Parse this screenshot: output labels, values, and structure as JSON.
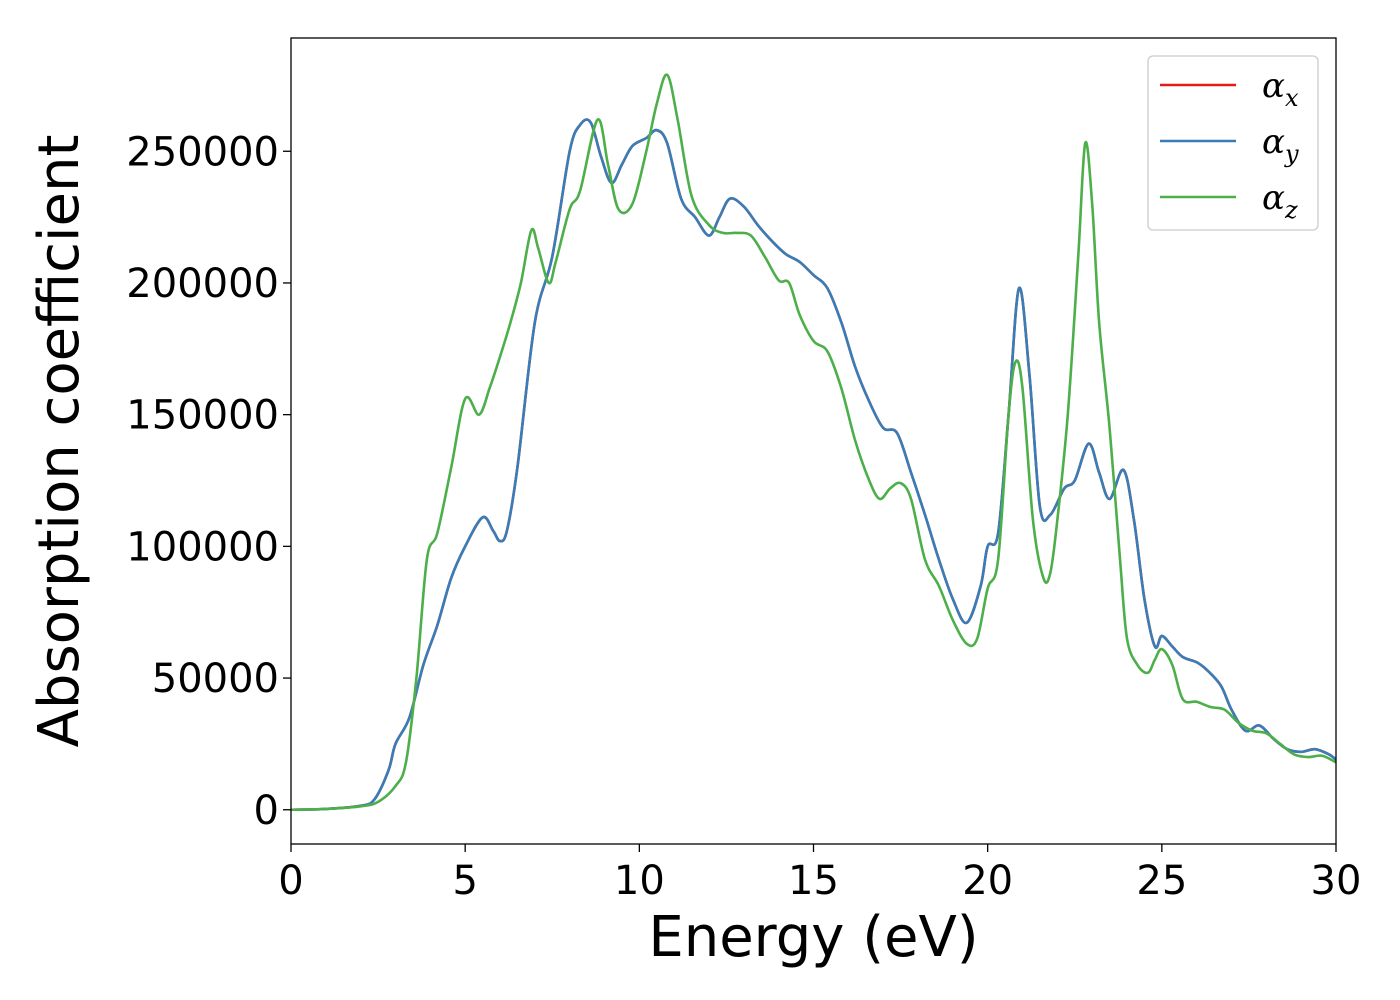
{
  "chart_data": {
    "type": "line",
    "title": "",
    "xlabel": "Energy (eV)",
    "ylabel": "Absorption coefficient",
    "xlim": [
      0,
      30
    ],
    "ylim": [
      -13000,
      293000
    ],
    "xticks": [
      0,
      5,
      10,
      15,
      20,
      25,
      30
    ],
    "xtick_labels": [
      "0",
      "5",
      "10",
      "15",
      "20",
      "25",
      "30"
    ],
    "yticks": [
      0,
      50000,
      100000,
      150000,
      200000,
      250000
    ],
    "ytick_labels": [
      "0",
      "50000",
      "100000",
      "150000",
      "200000",
      "250000"
    ],
    "grid": false,
    "legend_position": "top-right",
    "series": [
      {
        "name": "α",
        "subscript": "x",
        "color": "#e41a1c",
        "x": [
          0,
          1,
          2,
          2.4,
          2.8,
          3.0,
          3.4,
          3.8,
          4.2,
          4.6,
          5.0,
          5.5,
          5.8,
          6.0,
          6.2,
          6.5,
          7.0,
          7.5,
          8.0,
          8.3,
          8.6,
          8.9,
          9.2,
          9.5,
          9.8,
          10.2,
          10.5,
          10.8,
          11.2,
          11.6,
          12.0,
          12.3,
          12.6,
          13.0,
          13.4,
          13.8,
          14.2,
          14.6,
          15.0,
          15.4,
          15.8,
          16.2,
          16.6,
          17.0,
          17.4,
          17.8,
          18.2,
          18.6,
          19.0,
          19.4,
          19.8,
          20.0,
          20.3,
          20.6,
          20.9,
          21.2,
          21.5,
          21.8,
          22.2,
          22.5,
          22.9,
          23.2,
          23.5,
          23.9,
          24.2,
          24.5,
          24.8,
          25.0,
          25.3,
          25.6,
          26.0,
          26.3,
          26.7,
          27.0,
          27.4,
          27.8,
          28.2,
          28.6,
          29.0,
          29.4,
          29.8,
          30.0
        ],
        "y": [
          0,
          300,
          1500,
          4000,
          15000,
          25000,
          35000,
          55000,
          70000,
          88000,
          100000,
          111000,
          106000,
          102000,
          106000,
          130000,
          185000,
          210000,
          250000,
          260000,
          261000,
          248000,
          238000,
          245000,
          252000,
          255000,
          258000,
          253000,
          232000,
          225000,
          218000,
          225000,
          232000,
          229000,
          222000,
          216000,
          211000,
          208000,
          203000,
          198000,
          185000,
          168000,
          155000,
          145000,
          143000,
          128000,
          112000,
          95000,
          80000,
          71000,
          85000,
          100000,
          105000,
          150000,
          198000,
          165000,
          115000,
          112000,
          122000,
          125000,
          139000,
          128000,
          118000,
          129000,
          110000,
          80000,
          62000,
          66000,
          62000,
          58000,
          56000,
          53000,
          47000,
          38000,
          30000,
          32000,
          27000,
          23000,
          22000,
          23000,
          21000,
          19000
        ]
      },
      {
        "name": "α",
        "subscript": "y",
        "color": "#377eb8",
        "x": [
          0,
          1,
          2,
          2.4,
          2.8,
          3.0,
          3.4,
          3.8,
          4.2,
          4.6,
          5.0,
          5.5,
          5.8,
          6.0,
          6.2,
          6.5,
          7.0,
          7.5,
          8.0,
          8.3,
          8.6,
          8.9,
          9.2,
          9.5,
          9.8,
          10.2,
          10.5,
          10.8,
          11.2,
          11.6,
          12.0,
          12.3,
          12.6,
          13.0,
          13.4,
          13.8,
          14.2,
          14.6,
          15.0,
          15.4,
          15.8,
          16.2,
          16.6,
          17.0,
          17.4,
          17.8,
          18.2,
          18.6,
          19.0,
          19.4,
          19.8,
          20.0,
          20.3,
          20.6,
          20.9,
          21.2,
          21.5,
          21.8,
          22.2,
          22.5,
          22.9,
          23.2,
          23.5,
          23.9,
          24.2,
          24.5,
          24.8,
          25.0,
          25.3,
          25.6,
          26.0,
          26.3,
          26.7,
          27.0,
          27.4,
          27.8,
          28.2,
          28.6,
          29.0,
          29.4,
          29.8,
          30.0
        ],
        "y": [
          0,
          300,
          1500,
          4000,
          15000,
          25000,
          35000,
          55000,
          70000,
          88000,
          100000,
          111000,
          106000,
          102000,
          106000,
          130000,
          185000,
          210000,
          250000,
          260000,
          261000,
          248000,
          238000,
          245000,
          252000,
          255000,
          258000,
          253000,
          232000,
          225000,
          218000,
          225000,
          232000,
          229000,
          222000,
          216000,
          211000,
          208000,
          203000,
          198000,
          185000,
          168000,
          155000,
          145000,
          143000,
          128000,
          112000,
          95000,
          80000,
          71000,
          85000,
          100000,
          105000,
          150000,
          198000,
          165000,
          115000,
          112000,
          122000,
          125000,
          139000,
          128000,
          118000,
          129000,
          110000,
          80000,
          62000,
          66000,
          62000,
          58000,
          56000,
          53000,
          47000,
          38000,
          30000,
          32000,
          27000,
          23000,
          22000,
          23000,
          21000,
          19000
        ]
      },
      {
        "name": "α",
        "subscript": "z",
        "color": "#4daf4a",
        "x": [
          0,
          1,
          2,
          2.5,
          3.0,
          3.3,
          3.6,
          3.9,
          4.2,
          4.6,
          5.0,
          5.4,
          5.7,
          6.0,
          6.3,
          6.6,
          6.9,
          7.1,
          7.4,
          7.6,
          8.0,
          8.3,
          8.8,
          9.1,
          9.4,
          9.8,
          10.2,
          10.5,
          10.8,
          11.1,
          11.5,
          12.0,
          12.4,
          12.8,
          13.2,
          13.6,
          14.0,
          14.3,
          14.6,
          15.0,
          15.4,
          15.8,
          16.2,
          16.6,
          16.9,
          17.2,
          17.5,
          17.8,
          18.2,
          18.6,
          19.0,
          19.4,
          19.7,
          20.0,
          20.3,
          20.6,
          20.8,
          21.0,
          21.3,
          21.6,
          21.8,
          22.0,
          22.3,
          22.6,
          22.8,
          23.0,
          23.2,
          23.5,
          23.8,
          24.0,
          24.3,
          24.6,
          24.8,
          25.0,
          25.3,
          25.6,
          26.0,
          26.4,
          26.8,
          27.2,
          27.6,
          28.0,
          28.4,
          28.8,
          29.2,
          29.6,
          30.0
        ],
        "y": [
          0,
          300,
          1300,
          3000,
          9000,
          18000,
          50000,
          95000,
          105000,
          130000,
          156000,
          150000,
          160000,
          172000,
          185000,
          200000,
          220000,
          213000,
          200000,
          208000,
          228000,
          235000,
          262000,
          245000,
          228000,
          230000,
          250000,
          268000,
          279000,
          262000,
          233000,
          222000,
          219000,
          219000,
          218000,
          210000,
          201000,
          200000,
          188000,
          178000,
          174000,
          160000,
          140000,
          125000,
          118000,
          122000,
          124000,
          118000,
          95000,
          85000,
          72000,
          63000,
          65000,
          84000,
          95000,
          150000,
          170000,
          160000,
          110000,
          88000,
          90000,
          110000,
          150000,
          210000,
          253000,
          230000,
          185000,
          145000,
          95000,
          65000,
          55000,
          52000,
          57000,
          61000,
          55000,
          42000,
          41000,
          39000,
          38000,
          33000,
          30000,
          29000,
          25000,
          21000,
          20000,
          20500,
          18000
        ]
      }
    ]
  }
}
